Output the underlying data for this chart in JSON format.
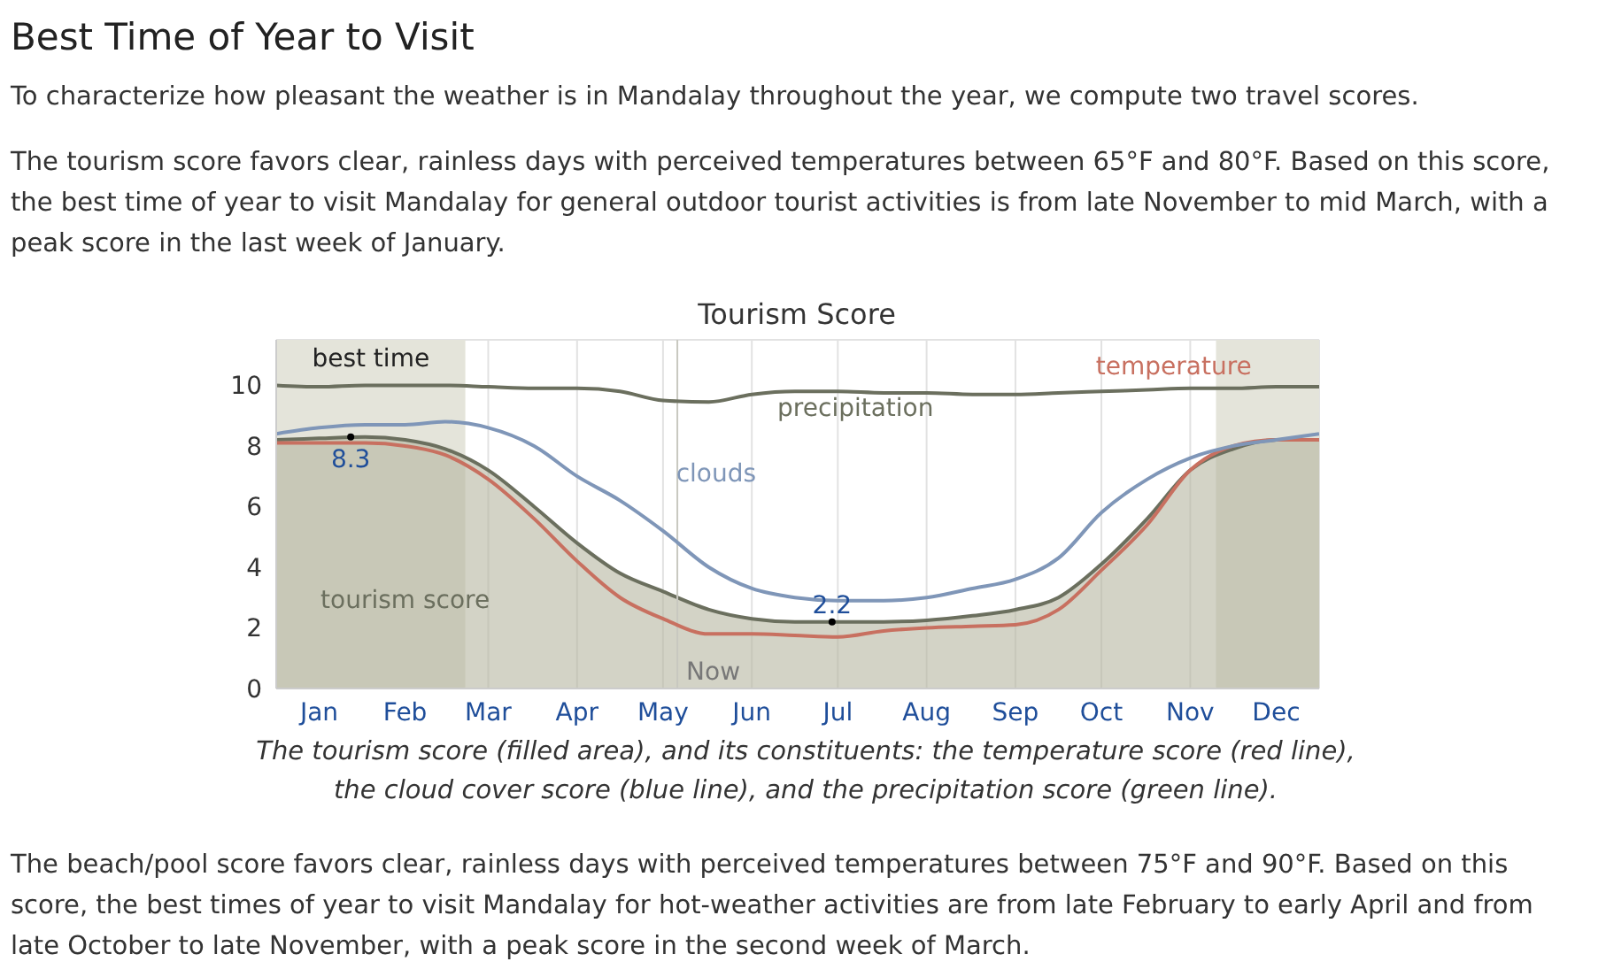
{
  "chart_data": {
    "type": "line",
    "title": "Tourism Score",
    "annotations": [
      "Best Time of Year to Visit",
      "To characterize how pleasant the weather is in Mandalay throughout the year, we compute two travel scores.",
      "The tourism score favors clear, rainless days with perceived temperatures between 65°F and 80°F. Based on this score, the best time of year to visit Mandalay for general outdoor tourist activities is from late November to mid March, with a peak score in the last week of January.",
      "The tourism score (filled area), and its constituents: the temperature score (red line), the cloud cover score (blue line), and the precipitation score (green line).",
      "The beach/pool score favors clear, rainless days with perceived temperatures between 75°F and 90°F. Based on this score, the best times of year to visit Mandalay for hot-weather activities are from late February to early April and from late October to late November, with a peak score in the second week of March.",
      {
        "text": "8.3",
        "x": "--01-27",
        "y": 8.3
      },
      {
        "text": "2.2",
        "x": "--07-14",
        "y": 2.2
      }
    ],
    "x": [
      "--01-01",
      "--01-16",
      "--02-01",
      "--02-15",
      "--03-01",
      "--03-16",
      "--04-01",
      "--04-16",
      "--05-01",
      "--05-16",
      "--06-01",
      "--06-16",
      "--07-01",
      "--07-16",
      "--08-01",
      "--08-16",
      "--09-01",
      "--09-16",
      "--10-01",
      "--10-16",
      "--11-01",
      "--11-16",
      "--12-01",
      "--12-16",
      "--12-31"
    ],
    "series": [
      {
        "name": "tourism score",
        "type": "area",
        "color": "#6b6f5e",
        "values": [
          8.2,
          8.25,
          8.3,
          8.2,
          7.9,
          7.2,
          6.0,
          4.8,
          3.8,
          3.2,
          2.6,
          2.3,
          2.2,
          2.2,
          2.2,
          2.25,
          2.4,
          2.6,
          3.0,
          4.1,
          5.6,
          7.2,
          7.9,
          8.2,
          8.2
        ]
      },
      {
        "name": "temperature",
        "color": "#c87060",
        "values": [
          8.1,
          8.1,
          8.1,
          8.0,
          7.7,
          6.9,
          5.6,
          4.2,
          3.0,
          2.3,
          1.8,
          1.8,
          1.75,
          1.7,
          1.9,
          2.0,
          2.05,
          2.1,
          2.6,
          3.9,
          5.4,
          7.2,
          8.0,
          8.2,
          8.2
        ]
      },
      {
        "name": "clouds",
        "color": "#7f96b8",
        "values": [
          8.4,
          8.6,
          8.7,
          8.7,
          8.8,
          8.6,
          8.0,
          7.0,
          6.2,
          5.2,
          4.0,
          3.3,
          3.0,
          2.9,
          2.9,
          3.0,
          3.3,
          3.6,
          4.3,
          5.8,
          6.9,
          7.6,
          8.0,
          8.2,
          8.4
        ]
      },
      {
        "name": "precipitation",
        "color": "#6b6f5e",
        "values": [
          10,
          9.95,
          10,
          10,
          10,
          9.95,
          9.9,
          9.9,
          9.8,
          9.5,
          9.45,
          9.7,
          9.8,
          9.8,
          9.75,
          9.75,
          9.7,
          9.7,
          9.75,
          9.8,
          9.85,
          9.9,
          9.9,
          9.95,
          9.95
        ]
      }
    ],
    "xlim": [
      "--01-01",
      "--12-31"
    ],
    "xticks": [
      {
        "value": "--01-16",
        "label": "Jan"
      },
      {
        "value": "--02-15",
        "label": "Feb"
      },
      {
        "value": "--03-16",
        "label": "Mar"
      },
      {
        "value": "--04-16",
        "label": "Apr"
      },
      {
        "value": "--05-16",
        "label": "May"
      },
      {
        "value": "--06-16",
        "label": "Jun"
      },
      {
        "value": "--07-16",
        "label": "Jul"
      },
      {
        "value": "--08-16",
        "label": "Aug"
      },
      {
        "value": "--09-16",
        "label": "Sep"
      },
      {
        "value": "--10-16",
        "label": "Oct"
      },
      {
        "value": "--11-16",
        "label": "Nov"
      },
      {
        "value": "--12-16",
        "label": "Dec"
      }
    ],
    "ylim": [
      0,
      11.5
    ],
    "yticks": [
      0,
      2,
      4,
      6,
      8,
      10
    ],
    "bands": [
      {
        "axis": "x",
        "from": "--01-01",
        "to": "--03-08",
        "label": "best time",
        "color": "#e4e4da"
      },
      {
        "axis": "x",
        "from": "--11-25",
        "to": "--12-31",
        "label": null,
        "color": "#e4e4da"
      }
    ],
    "ref_lines": [
      {
        "axis": "x",
        "value": "--05-21",
        "label": "Now",
        "color": "#c8c8c0"
      }
    ],
    "grid": true,
    "legend": false,
    "marker": "none",
    "line_style": "solid"
  }
}
